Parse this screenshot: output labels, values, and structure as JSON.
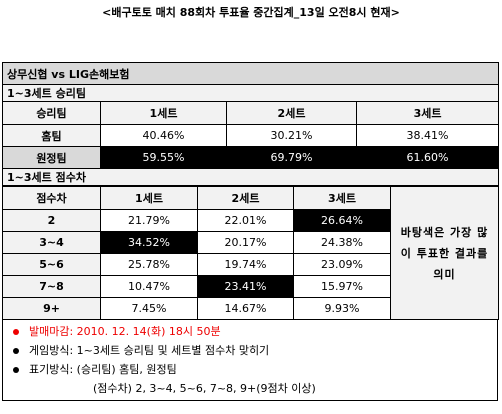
{
  "title": "<배구토토 매치 88회차 투표율 중간집계_13일 오전8시 현재>",
  "match": "상무신협 vs LIG손해보험",
  "winner_table": {
    "title": "1~3세트 승리팀",
    "header": [
      "승리팀",
      "1세트",
      "2세트",
      "3세트"
    ],
    "rows": [
      [
        "홈팀",
        "40.46%",
        "30.21%",
        "38.41%"
      ],
      [
        "원정팀",
        "59.55%",
        "69.79%",
        "61.60%"
      ]
    ]
  },
  "margin_table": {
    "title": "1~3세트 점수차",
    "header": [
      "점수차",
      "1세트",
      "2세트",
      "3세트"
    ],
    "rows": [
      [
        "2",
        "21.79%",
        "22.01%",
        "26.64%"
      ],
      [
        "3~4",
        "34.52%",
        "20.17%",
        "24.38%"
      ],
      [
        "5~6",
        "25.78%",
        "19.74%",
        "23.09%"
      ],
      [
        "7~8",
        "10.47%",
        "23.41%",
        "15.97%"
      ],
      [
        "9+",
        "7.45%",
        "14.67%",
        "9.93%"
      ]
    ],
    "note": "바탕색은 가장 많이 투표한 결과를 의미"
  },
  "notes": [
    "발매마감: 2010. 12. 14(화) 18시 50분",
    "게임방식: 1~3세트 승리팀 및 세트별 점수차 맞히기",
    "표기방식: (승리팀) 홈팀, 원정팀",
    "(점수차) 2, 3~4, 5~6, 7~8, 9+(9점차 이상)"
  ]
}
